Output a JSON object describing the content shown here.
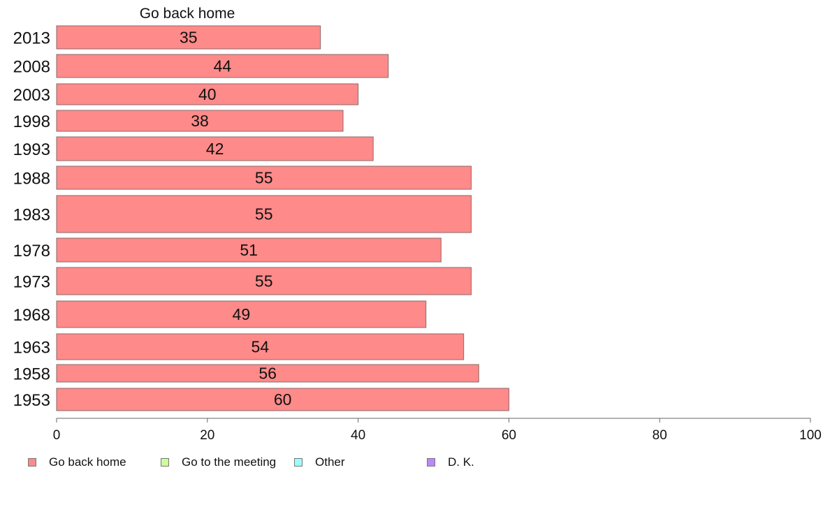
{
  "chart_data": {
    "type": "bar",
    "orientation": "horizontal",
    "title": "Go back home",
    "categories": [
      "2013",
      "2008",
      "2003",
      "1998",
      "1993",
      "1988",
      "1983",
      "1978",
      "1973",
      "1968",
      "1963",
      "1958",
      "1953"
    ],
    "series": [
      {
        "name": "Go back home",
        "values": [
          35,
          44,
          40,
          38,
          42,
          55,
          55,
          51,
          55,
          49,
          54,
          56,
          60
        ],
        "color": "#ff8a8a"
      }
    ],
    "xlim": [
      0,
      100
    ],
    "xticks": [
      0,
      20,
      40,
      60,
      80,
      100
    ],
    "grid": false,
    "legend": {
      "placement": "bottom",
      "items": [
        {
          "label": "Go back home",
          "color": "#ff8a8a"
        },
        {
          "label": "Go to the meeting",
          "color": "#ccff99"
        },
        {
          "label": "Other",
          "color": "#99ffff"
        },
        {
          "label": "D. K.",
          "color": "#bb88ff"
        }
      ]
    }
  }
}
